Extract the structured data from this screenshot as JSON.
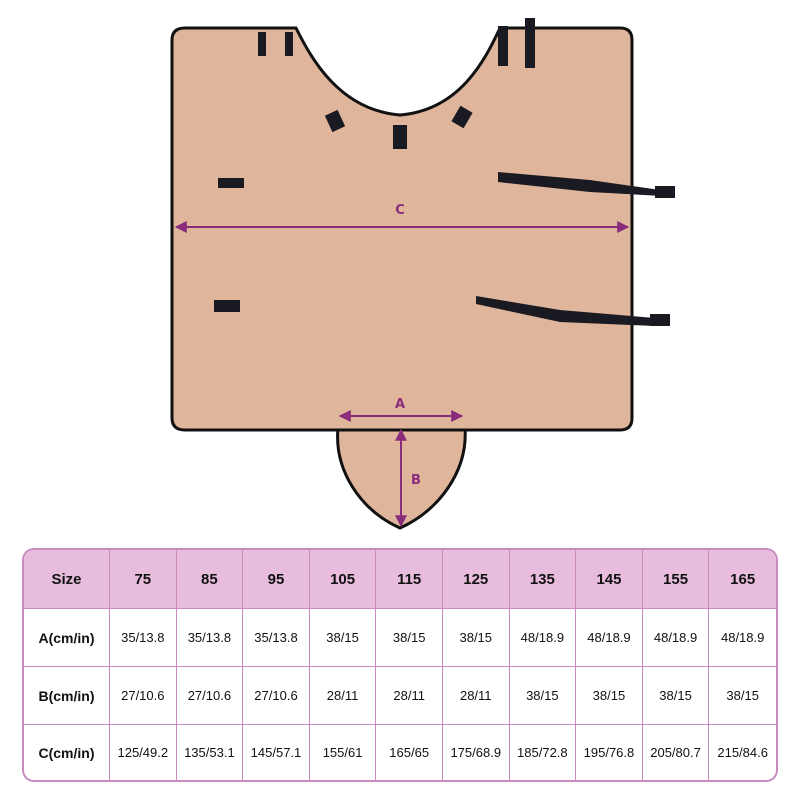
{
  "diagram": {
    "labels": {
      "a": "A",
      "b": "B",
      "c": "C"
    },
    "colors": {
      "fabric": "#dfb59c",
      "trim": "#111111",
      "arrow": "#8a2c7c",
      "table_header": "#e8bcdc",
      "table_border": "#c78bbd"
    }
  },
  "size_table": {
    "header": [
      "Size",
      "75",
      "85",
      "95",
      "105",
      "115",
      "125",
      "135",
      "145",
      "155",
      "165"
    ],
    "rows": [
      {
        "label": "A(cm/in)",
        "values": [
          "35/13.8",
          "35/13.8",
          "35/13.8",
          "38/15",
          "38/15",
          "38/15",
          "48/18.9",
          "48/18.9",
          "48/18.9",
          "48/18.9"
        ]
      },
      {
        "label": "B(cm/in)",
        "values": [
          "27/10.6",
          "27/10.6",
          "27/10.6",
          "28/11",
          "28/11",
          "28/11",
          "38/15",
          "38/15",
          "38/15",
          "38/15"
        ]
      },
      {
        "label": "C(cm/in)",
        "values": [
          "125/49.2",
          "135/53.1",
          "145/57.1",
          "155/61",
          "165/65",
          "175/68.9",
          "185/72.8",
          "195/76.8",
          "205/80.7",
          "215/84.6"
        ]
      }
    ]
  }
}
